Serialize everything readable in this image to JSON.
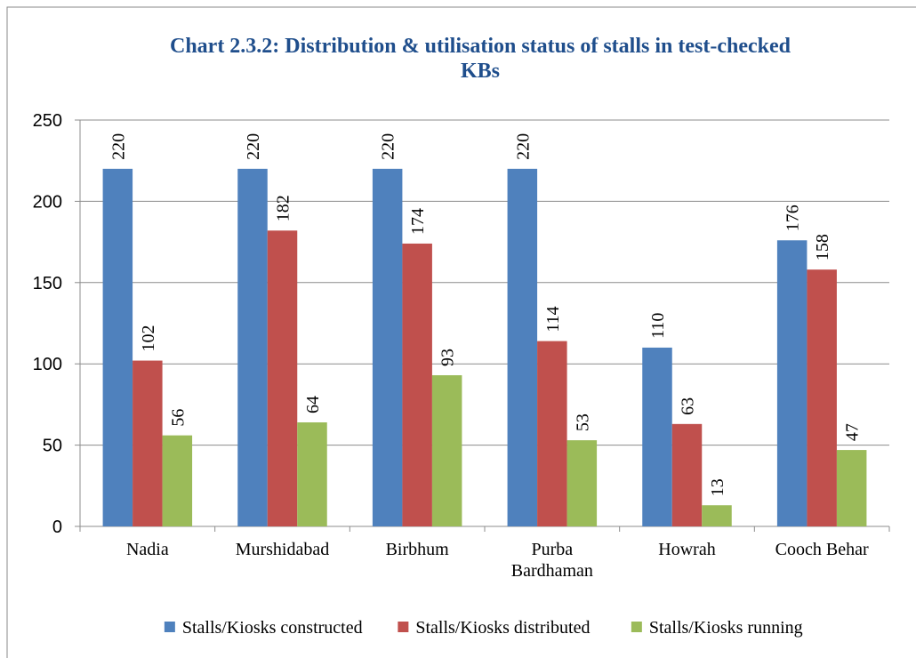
{
  "chart_data": {
    "type": "bar",
    "title": "Chart 2.3.2: Distribution & utilisation status of stalls in test-checked KBs",
    "categories": [
      "Nadia",
      "Murshidabad",
      "Birbhum",
      "Purba Bardhaman",
      "Howrah",
      "Cooch Behar"
    ],
    "series": [
      {
        "name": "Stalls/Kiosks constructed",
        "color": "#4f81bd",
        "values": [
          220,
          220,
          220,
          220,
          110,
          176
        ]
      },
      {
        "name": "Stalls/Kiosks distributed",
        "color": "#c0504d",
        "values": [
          102,
          182,
          174,
          114,
          63,
          158
        ]
      },
      {
        "name": "Stalls/Kiosks running",
        "color": "#9bbb59",
        "values": [
          56,
          64,
          93,
          53,
          13,
          47
        ]
      }
    ],
    "ylim": [
      0,
      250
    ],
    "yticks": [
      0,
      50,
      100,
      150,
      200,
      250
    ],
    "grid": true,
    "legend": "bottom"
  }
}
